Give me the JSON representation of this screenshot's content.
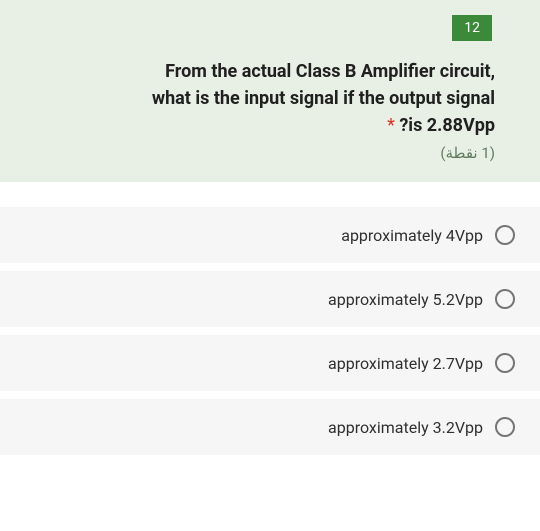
{
  "question": {
    "number": "12",
    "text_line1": "From the actual Class B Amplifier circuit,",
    "text_line2": "what is the input signal if the output signal",
    "text_line3": "?is 2.88Vpp",
    "required_star": "*",
    "points": "(1 نقطة)",
    "card_bg": "#e8f0e5",
    "number_bg": "#3a8a3a",
    "number_color": "#ffffff",
    "text_color": "#202020",
    "star_color": "#d93025",
    "points_color": "#5f7a5f",
    "title_fontsize": 18,
    "points_fontsize": 15
  },
  "options": [
    {
      "label": "approximately 4Vpp"
    },
    {
      "label": "approximately 5.2Vpp"
    },
    {
      "label": "approximately 2.7Vpp"
    },
    {
      "label": "approximately 3.2Vpp"
    }
  ],
  "styling": {
    "option_bg": "#f6f6f6",
    "option_text_color": "#303030",
    "radio_border_color": "#757575",
    "option_fontsize": 16,
    "body_bg": "#ffffff"
  }
}
